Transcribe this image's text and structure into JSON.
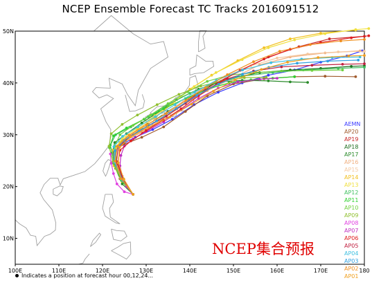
{
  "title": "NCEP Ensemble Forecast TC Tracks 2016091512",
  "watermark": "NCEP集合预报",
  "footnote": "Indicates a position at forecast hour 00,12,24...",
  "map": {
    "lon_range": [
      100,
      180
    ],
    "lat_range": [
      5,
      50
    ],
    "lon_ticks": [
      "100E",
      "110E",
      "120E",
      "130E",
      "140E",
      "150E",
      "160E",
      "170E",
      "180"
    ],
    "lat_ticks": [
      "10N",
      "20N",
      "30N",
      "40N",
      "50N"
    ]
  },
  "colors": {
    "land_outline": "#a0a0a0",
    "watermark": "#e00000"
  },
  "legend": [
    {
      "label": "AEMN",
      "color": "#3a3aff"
    },
    {
      "label": "AP20",
      "color": "#a05a2c"
    },
    {
      "label": "AP19",
      "color": "#c82828"
    },
    {
      "label": "AP18",
      "color": "#1e6e1e"
    },
    {
      "label": "AP17",
      "color": "#2a8a2a"
    },
    {
      "label": "AP16",
      "color": "#f0b080"
    },
    {
      "label": "AP15",
      "color": "#f5c8a0"
    },
    {
      "label": "AP14",
      "color": "#f2c020"
    },
    {
      "label": "AP13",
      "color": "#f0e040"
    },
    {
      "label": "AP12",
      "color": "#40c060"
    },
    {
      "label": "AP11",
      "color": "#30d030"
    },
    {
      "label": "AP10",
      "color": "#70d040"
    },
    {
      "label": "AP09",
      "color": "#90c030"
    },
    {
      "label": "AP08",
      "color": "#e040e0"
    },
    {
      "label": "AP07",
      "color": "#c030c0"
    },
    {
      "label": "AP06",
      "color": "#e02020"
    },
    {
      "label": "AP05",
      "color": "#c02040"
    },
    {
      "label": "AP04",
      "color": "#40c0e0"
    },
    {
      "label": "AP03",
      "color": "#30a0e0"
    },
    {
      "label": "AP02",
      "color": "#f09020"
    },
    {
      "label": "AP01",
      "color": "#f0a020"
    }
  ],
  "tracks": [
    {
      "member": "AEMN",
      "color": "#3a3aff",
      "points": [
        [
          127,
          18.5
        ],
        [
          124.5,
          21
        ],
        [
          122.8,
          24
        ],
        [
          122.5,
          26.5
        ],
        [
          124,
          28
        ],
        [
          127.5,
          29.5
        ],
        [
          131.5,
          31
        ],
        [
          136,
          33
        ],
        [
          141,
          35.8
        ],
        [
          146.5,
          38.2
        ],
        [
          152,
          40
        ],
        [
          158,
          41.5
        ],
        [
          164,
          42.5
        ],
        [
          170,
          44
        ],
        [
          176,
          45.2
        ],
        [
          179.5,
          46.2
        ]
      ]
    },
    {
      "member": "AP20",
      "color": "#a05a2c",
      "points": [
        [
          127,
          18.5
        ],
        [
          124,
          21.5
        ],
        [
          122.5,
          24.5
        ],
        [
          122.7,
          27
        ],
        [
          125,
          28.2
        ],
        [
          129,
          29.5
        ],
        [
          134,
          31.5
        ],
        [
          139,
          34.5
        ],
        [
          144,
          37.5
        ],
        [
          150,
          39.8
        ],
        [
          157,
          40.8
        ],
        [
          164,
          41.2
        ],
        [
          171,
          41.3
        ],
        [
          178,
          41.2
        ]
      ]
    },
    {
      "member": "AP19",
      "color": "#c82828",
      "points": [
        [
          127,
          18.5
        ],
        [
          124.5,
          21.5
        ],
        [
          123,
          24.5
        ],
        [
          122.8,
          27
        ],
        [
          125,
          28.8
        ],
        [
          129,
          30.5
        ],
        [
          133,
          32.5
        ],
        [
          137,
          35
        ],
        [
          141,
          37.5
        ],
        [
          146,
          40
        ],
        [
          152,
          42.5
        ],
        [
          158,
          45
        ],
        [
          165,
          47
        ],
        [
          172,
          48.5
        ],
        [
          180,
          49
        ]
      ]
    },
    {
      "member": "AP18",
      "color": "#1e6e1e",
      "points": [
        [
          127,
          18.5
        ],
        [
          124.8,
          21
        ],
        [
          123,
          24
        ],
        [
          122.5,
          26.8
        ],
        [
          124,
          28.5
        ],
        [
          127,
          30
        ],
        [
          130.5,
          32
        ],
        [
          135,
          34.5
        ],
        [
          139.5,
          37
        ],
        [
          144.5,
          39.5
        ],
        [
          150,
          41
        ],
        [
          156,
          42
        ],
        [
          163,
          42.5
        ],
        [
          170,
          42.8
        ],
        [
          177,
          43.2
        ],
        [
          180,
          43.3
        ]
      ]
    },
    {
      "member": "AP17",
      "color": "#2a8a2a",
      "points": [
        [
          127,
          18.5
        ],
        [
          124.5,
          20.5
        ],
        [
          123,
          23.5
        ],
        [
          122.2,
          26.5
        ],
        [
          122.8,
          28.5
        ],
        [
          125.5,
          30.2
        ],
        [
          129,
          32.3
        ],
        [
          133,
          34.5
        ],
        [
          137,
          36.8
        ],
        [
          142,
          38.8
        ],
        [
          147,
          40.2
        ],
        [
          152,
          40.5
        ],
        [
          158,
          40.4
        ],
        [
          163,
          40.2
        ],
        [
          167,
          40.1
        ]
      ]
    },
    {
      "member": "AP16",
      "color": "#f0b080",
      "points": [
        [
          127,
          18.5
        ],
        [
          124,
          21.8
        ],
        [
          122.7,
          25
        ],
        [
          123.3,
          27.5
        ],
        [
          126,
          29.2
        ],
        [
          130,
          31
        ],
        [
          134.5,
          33.5
        ],
        [
          139,
          36
        ],
        [
          144,
          38.5
        ],
        [
          150,
          41
        ],
        [
          156,
          43.5
        ],
        [
          163,
          45
        ],
        [
          171,
          45.8
        ],
        [
          179,
          46.2
        ]
      ]
    },
    {
      "member": "AP15",
      "color": "#f5c8a0",
      "points": [
        [
          127,
          18.5
        ],
        [
          124.2,
          21.5
        ],
        [
          122.8,
          24.8
        ],
        [
          123,
          27.5
        ],
        [
          125.5,
          29.5
        ],
        [
          129.5,
          31.5
        ],
        [
          134,
          33.8
        ],
        [
          138.5,
          36.5
        ],
        [
          143,
          39
        ],
        [
          148,
          41.2
        ],
        [
          154,
          43.3
        ],
        [
          160,
          44.8
        ],
        [
          167,
          45.6
        ],
        [
          174,
          46
        ],
        [
          180,
          46.1
        ]
      ]
    },
    {
      "member": "AP14",
      "color": "#f2c020",
      "points": [
        [
          127,
          18.5
        ],
        [
          124.5,
          21
        ],
        [
          122.6,
          24
        ],
        [
          122.3,
          27
        ],
        [
          124.5,
          29
        ],
        [
          128,
          31
        ],
        [
          132,
          33.3
        ],
        [
          136,
          36
        ],
        [
          140,
          38.8
        ],
        [
          145,
          41.5
        ],
        [
          151,
          44.3
        ],
        [
          157,
          46.8
        ],
        [
          163,
          48.5
        ],
        [
          170,
          49.6
        ],
        [
          178,
          50.2
        ]
      ]
    },
    {
      "member": "AP13",
      "color": "#f0e040",
      "points": [
        [
          127,
          18.5
        ],
        [
          124.8,
          21.2
        ],
        [
          123.2,
          24.2
        ],
        [
          122.8,
          27.2
        ],
        [
          124.5,
          29.3
        ],
        [
          128,
          31.3
        ],
        [
          132,
          33.7
        ],
        [
          136.5,
          36.4
        ],
        [
          141,
          39.3
        ],
        [
          146,
          42
        ],
        [
          152,
          44.5
        ],
        [
          158,
          46.8
        ],
        [
          164,
          48.3
        ],
        [
          171,
          49.5
        ],
        [
          178,
          50.3
        ],
        [
          181,
          50.5
        ]
      ]
    },
    {
      "member": "AP12",
      "color": "#40c060",
      "points": [
        [
          127,
          18.5
        ],
        [
          124.5,
          21.5
        ],
        [
          122.6,
          25
        ],
        [
          121.8,
          28
        ],
        [
          123,
          30
        ],
        [
          126.5,
          31.5
        ],
        [
          130.5,
          33.5
        ],
        [
          135,
          35.8
        ],
        [
          140,
          38
        ],
        [
          145.5,
          40
        ],
        [
          152,
          41.3
        ],
        [
          159,
          42
        ],
        [
          166,
          42.5
        ],
        [
          174,
          42.8
        ],
        [
          180,
          43
        ]
      ]
    },
    {
      "member": "AP11",
      "color": "#30d030",
      "points": [
        [
          127,
          18.5
        ],
        [
          124.3,
          21.2
        ],
        [
          122.5,
          24.5
        ],
        [
          121.6,
          27.5
        ],
        [
          122.5,
          29.8
        ],
        [
          125.5,
          31.3
        ],
        [
          129.5,
          33
        ],
        [
          134,
          35
        ],
        [
          139,
          37
        ],
        [
          144,
          38.8
        ],
        [
          149,
          40
        ],
        [
          154,
          40.6
        ],
        [
          159,
          40.9
        ],
        [
          164,
          41.2
        ]
      ]
    },
    {
      "member": "AP10",
      "color": "#70d040",
      "points": [
        [
          127,
          18.5
        ],
        [
          124.8,
          21.5
        ],
        [
          123.3,
          24.8
        ],
        [
          122.8,
          27.8
        ],
        [
          124,
          30
        ],
        [
          127,
          31.8
        ],
        [
          131,
          33.8
        ],
        [
          135,
          36
        ],
        [
          139.5,
          38.3
        ],
        [
          144,
          40.3
        ],
        [
          149,
          41.5
        ],
        [
          155,
          42
        ],
        [
          161,
          42.3
        ],
        [
          168,
          42.4
        ],
        [
          175,
          42.5
        ]
      ]
    },
    {
      "member": "AP09",
      "color": "#90c030",
      "points": [
        [
          127,
          18.5
        ],
        [
          124.2,
          21.6
        ],
        [
          122.4,
          24.8
        ],
        [
          121.5,
          27.8
        ],
        [
          122,
          30.2
        ],
        [
          124.5,
          32
        ],
        [
          128,
          33.8
        ],
        [
          132.5,
          35.8
        ],
        [
          137.5,
          37.8
        ],
        [
          142.5,
          39.4
        ],
        [
          147.5,
          40.4
        ],
        [
          152.5,
          41
        ],
        [
          157.5,
          41.1
        ]
      ]
    },
    {
      "member": "AP08",
      "color": "#e040e0",
      "points": [
        [
          127,
          18.5
        ],
        [
          125,
          19
        ],
        [
          123.3,
          20.5
        ],
        [
          122.5,
          22.5
        ],
        [
          122,
          24.5
        ],
        [
          121.8,
          26.3
        ]
      ]
    },
    {
      "member": "AP07",
      "color": "#c030c0",
      "points": [
        [
          127,
          18.5
        ],
        [
          125.5,
          20
        ],
        [
          124.5,
          22
        ],
        [
          124,
          24
        ],
        [
          124.2,
          26
        ],
        [
          125,
          27.8
        ],
        [
          127,
          29.2
        ],
        [
          130,
          30.6
        ],
        [
          134,
          32.5
        ],
        [
          138,
          34.8
        ],
        [
          142,
          37
        ],
        [
          146.5,
          39
        ],
        [
          151,
          40.2
        ],
        [
          156,
          40.7
        ],
        [
          160,
          40.9
        ]
      ]
    },
    {
      "member": "AP06",
      "color": "#e02020",
      "points": [
        [
          127,
          18.5
        ],
        [
          124.8,
          21.3
        ],
        [
          123.5,
          24.5
        ],
        [
          124,
          27
        ],
        [
          126.5,
          28.8
        ],
        [
          130,
          30.8
        ],
        [
          134,
          32.8
        ],
        [
          138,
          35
        ],
        [
          142,
          37.5
        ],
        [
          146.5,
          40
        ],
        [
          151.5,
          42.4
        ],
        [
          157,
          44.6
        ],
        [
          163,
          46.5
        ],
        [
          170,
          47.8
        ],
        [
          177,
          48.7
        ],
        [
          181,
          49.1
        ]
      ]
    },
    {
      "member": "AP05",
      "color": "#c02040",
      "points": [
        [
          127,
          18.5
        ],
        [
          124.6,
          21.6
        ],
        [
          123.2,
          24.8
        ],
        [
          123.6,
          27.6
        ],
        [
          126.3,
          29.7
        ],
        [
          130.3,
          31.6
        ],
        [
          134.6,
          33.6
        ],
        [
          139,
          36.1
        ],
        [
          143.6,
          38.6
        ],
        [
          148.6,
          40.8
        ],
        [
          154.6,
          42.3
        ],
        [
          161,
          43.1
        ],
        [
          168,
          43.4
        ],
        [
          175,
          43.6
        ],
        [
          180,
          43.7
        ]
      ]
    },
    {
      "member": "AP04",
      "color": "#40c0e0",
      "points": [
        [
          127,
          18.5
        ],
        [
          124.4,
          21.4
        ],
        [
          122.8,
          24.7
        ],
        [
          122.6,
          27.7
        ],
        [
          124.6,
          29.7
        ],
        [
          128.1,
          31.5
        ],
        [
          132.1,
          33.5
        ],
        [
          136.6,
          35.8
        ],
        [
          141.1,
          38.2
        ],
        [
          146.1,
          40.5
        ],
        [
          152.1,
          42.5
        ],
        [
          158.6,
          43.9
        ],
        [
          165.6,
          44.6
        ],
        [
          172.6,
          44.9
        ],
        [
          179,
          45
        ]
      ]
    },
    {
      "member": "AP03",
      "color": "#30a0e0",
      "points": [
        [
          127,
          18.5
        ],
        [
          124.7,
          21.1
        ],
        [
          123.1,
          24.1
        ],
        [
          122.9,
          26.9
        ],
        [
          124.9,
          28.9
        ],
        [
          128.4,
          30.7
        ],
        [
          132.4,
          32.7
        ],
        [
          136.9,
          35.1
        ],
        [
          141.6,
          37.6
        ],
        [
          146.6,
          39.8
        ],
        [
          152.1,
          41.7
        ],
        [
          158.1,
          43
        ],
        [
          164.6,
          43.8
        ],
        [
          171.6,
          44.2
        ],
        [
          178.6,
          44.4
        ]
      ]
    },
    {
      "member": "AP02",
      "color": "#f09020",
      "points": [
        [
          127,
          18.5
        ],
        [
          124.3,
          21.5
        ],
        [
          122.9,
          24.9
        ],
        [
          123.4,
          27.8
        ],
        [
          126.1,
          29.9
        ],
        [
          130.1,
          31.9
        ],
        [
          134.6,
          34.1
        ],
        [
          139.1,
          36.6
        ],
        [
          143.6,
          39.1
        ],
        [
          148.6,
          41.6
        ],
        [
          154.6,
          44.1
        ],
        [
          160.6,
          46.1
        ],
        [
          167.6,
          47.4
        ],
        [
          174.6,
          48.1
        ],
        [
          180,
          48.4
        ]
      ]
    },
    {
      "member": "AP01",
      "color": "#f0a020",
      "points": [
        [
          127,
          18.5
        ],
        [
          124.9,
          21.4
        ],
        [
          123.6,
          24.6
        ],
        [
          123.9,
          27.6
        ],
        [
          126.4,
          29.6
        ],
        [
          130.4,
          31.4
        ],
        [
          135.4,
          33.4
        ],
        [
          140.4,
          35.9
        ],
        [
          145.4,
          38.4
        ],
        [
          150.4,
          40.6
        ],
        [
          156.4,
          42.6
        ],
        [
          162.4,
          44
        ],
        [
          169.4,
          44.9
        ],
        [
          176.4,
          45.2
        ],
        [
          180,
          45.3
        ]
      ]
    }
  ]
}
